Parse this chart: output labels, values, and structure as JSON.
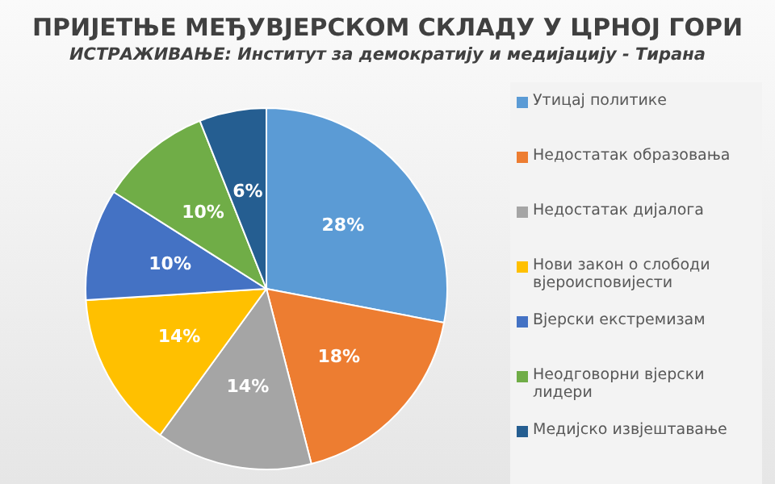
{
  "chart_data": {
    "type": "pie",
    "title": "ПРИЈЕТЊЕ МЕЂУВЈЕРСКОМ СКЛАДУ У ЦРНОЈ ГОРИ",
    "subtitle": "ИСТРАЖИВАЊЕ: Институт за демократију и медијацију - Тирана",
    "categories": [
      "Утицај политике",
      "Недостатак образовања",
      "Недостатак дијалога",
      "Нови закон о слободи вјероисповијести",
      "Вјерски екстремизам",
      "Неодговорни вјерски лидери",
      "Медијско извјештавање"
    ],
    "values": [
      28,
      18,
      14,
      14,
      10,
      10,
      6
    ],
    "colors": [
      "#5b9bd5",
      "#ed7d31",
      "#a5a5a5",
      "#ffc000",
      "#4472c4",
      "#70ad47",
      "#255e91"
    ],
    "value_labels": [
      "28%",
      "18%",
      "14%",
      "14%",
      "10%",
      "10%",
      "6%"
    ],
    "legend": "right"
  }
}
